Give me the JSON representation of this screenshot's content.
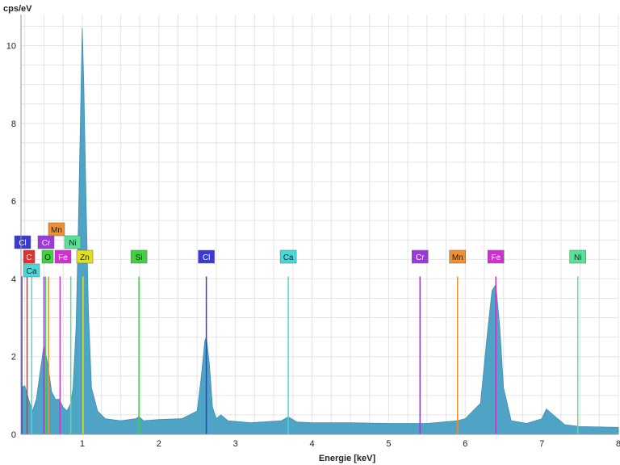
{
  "chart_data": {
    "type": "area",
    "title": "",
    "xlabel": "Energie [keV]",
    "ylabel": "cps/eV",
    "xlim": [
      0.2,
      8.0
    ],
    "ylim": [
      0,
      10.8
    ],
    "x_ticks": [
      1,
      2,
      3,
      4,
      5,
      6,
      7,
      8
    ],
    "y_ticks": [
      0,
      2,
      4,
      6,
      8,
      10
    ],
    "grid": true,
    "series": [
      {
        "x": [
          0.2,
          0.25,
          0.3,
          0.35,
          0.4,
          0.45,
          0.5,
          0.55,
          0.6,
          0.65,
          0.7,
          0.75,
          0.8,
          0.85,
          0.88,
          0.92,
          0.95,
          0.98,
          1.0,
          1.02,
          1.05,
          1.08,
          1.12,
          1.2,
          1.3,
          1.5,
          1.7,
          1.74,
          1.8,
          2.0,
          2.3,
          2.5,
          2.55,
          2.6,
          2.62,
          2.66,
          2.7,
          2.75,
          2.81,
          2.9,
          3.2,
          3.6,
          3.69,
          3.8,
          4.0,
          4.5,
          5.0,
          5.5,
          5.9,
          6.0,
          6.2,
          6.3,
          6.35,
          6.4,
          6.45,
          6.5,
          6.6,
          6.8,
          7.0,
          7.06,
          7.12,
          7.3,
          7.5,
          8.0
        ],
        "y": [
          1.2,
          1.25,
          0.9,
          0.6,
          0.9,
          1.6,
          2.3,
          1.8,
          1.1,
          0.9,
          0.9,
          0.7,
          0.6,
          0.8,
          1.2,
          2.8,
          5.5,
          8.5,
          10.45,
          9.0,
          6.0,
          3.2,
          1.2,
          0.6,
          0.4,
          0.35,
          0.4,
          0.45,
          0.35,
          0.38,
          0.4,
          0.6,
          1.4,
          2.4,
          2.5,
          1.8,
          0.7,
          0.4,
          0.5,
          0.35,
          0.3,
          0.35,
          0.45,
          0.32,
          0.3,
          0.3,
          0.28,
          0.28,
          0.35,
          0.4,
          0.8,
          2.8,
          3.7,
          3.85,
          2.8,
          1.2,
          0.35,
          0.28,
          0.4,
          0.65,
          0.55,
          0.25,
          0.2,
          0.18
        ],
        "color": "#4fa3c4"
      }
    ],
    "element_lines": [
      {
        "label": "C",
        "x": 0.28,
        "color": "#e03030"
      },
      {
        "label": "Ca",
        "x": 0.34,
        "color": "#48d8d8"
      },
      {
        "label": "Cl",
        "x": 0.2,
        "color": "#3a3ad0"
      },
      {
        "label": "Cr",
        "x": 0.5,
        "color": "#9a3ad8"
      },
      {
        "label": "O",
        "x": 0.52,
        "color": "#40d040"
      },
      {
        "label": "Mn",
        "x": 0.56,
        "color": "#f09030"
      },
      {
        "label": "Fe",
        "x": 0.71,
        "color": "#d030d0"
      },
      {
        "label": "Ni",
        "x": 0.85,
        "color": "#58e098"
      },
      {
        "label": "Zn",
        "x": 1.01,
        "color": "#e0e020"
      },
      {
        "label": "Si",
        "x": 1.74,
        "color": "#40d040"
      },
      {
        "label": "Cl",
        "x": 2.62,
        "color": "#3a3ad0"
      },
      {
        "label": "Ca",
        "x": 3.69,
        "color": "#48d8d8"
      },
      {
        "label": "Cr",
        "x": 5.41,
        "color": "#9a3ad8"
      },
      {
        "label": "Mn",
        "x": 5.9,
        "color": "#f09030"
      },
      {
        "label": "Fe",
        "x": 6.4,
        "color": "#d030d0"
      },
      {
        "label": "Ni",
        "x": 7.47,
        "color": "#58e098"
      }
    ],
    "element_line_height": 4.35
  },
  "colors": {
    "grid": "#e4e4e4",
    "axis": "#999999",
    "spectrum_fill": "#4fa3c4"
  }
}
